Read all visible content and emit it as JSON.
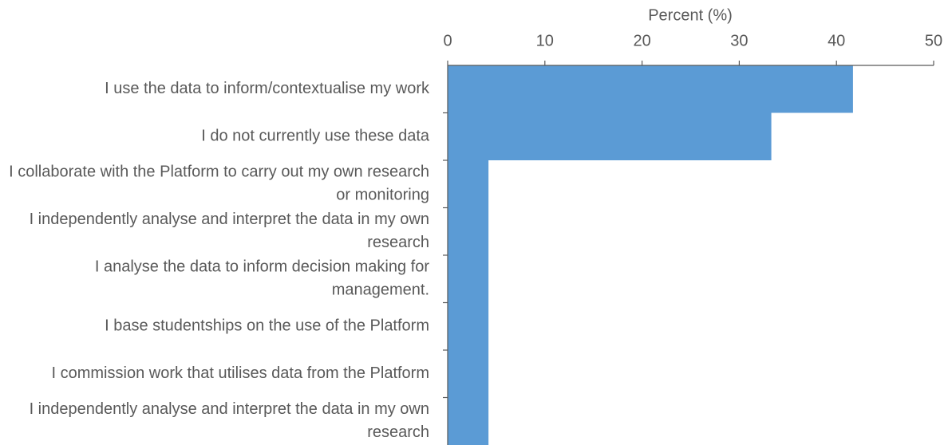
{
  "chart_data": {
    "type": "bar",
    "orientation": "horizontal",
    "xlabel": "Percent (%)",
    "categories": [
      "I use the data to inform/contextualise my work",
      "I do not currently use these data",
      "I collaborate with the Platform to carry out my own research or monitoring",
      "I independently analyse and interpret the data in my own research",
      "I analyse the data to inform decision making for management.",
      "I base studentships on the use of the Platform",
      "I commission work that utilises data from the Platform",
      "I independently analyse and interpret the data in my own research"
    ],
    "values": [
      41.7,
      33.3,
      4.2,
      4.2,
      4.2,
      4.2,
      4.2,
      4.2
    ],
    "color": "#5b9bd5",
    "xlim": [
      0,
      50
    ],
    "xticks": [
      0,
      10,
      20,
      30,
      40,
      50
    ],
    "grid": false
  }
}
